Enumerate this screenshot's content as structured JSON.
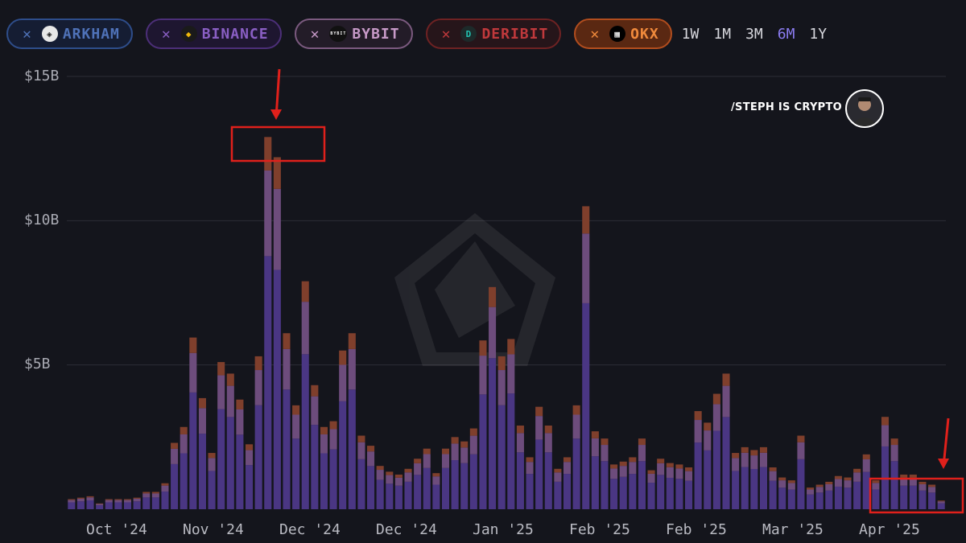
{
  "filters": [
    {
      "key": "arkham",
      "label": "ARKHAM",
      "close": "✕",
      "logo_glyph": "◈",
      "border": "#2e4d8a",
      "text": "#4f72b8",
      "bg": "#151d33",
      "logo_bg": "#e8e8e8",
      "logo_fg": "#222222"
    },
    {
      "key": "binance",
      "label": "BINANCE",
      "close": "✕",
      "logo_glyph": "◆",
      "border": "#4c2f78",
      "text": "#8a5fc4",
      "bg": "#1e1630",
      "logo_bg": "#1a1a1a",
      "logo_fg": "#f0b90b"
    },
    {
      "key": "bybit",
      "label": "BYBIT",
      "close": "✕",
      "logo_glyph": "BYBIT",
      "border": "#7b5a7f",
      "text": "#c79ac8",
      "bg": "#231c28",
      "logo_bg": "#111111",
      "logo_fg": "#ffffff"
    },
    {
      "key": "deribit",
      "label": "DERIBIT",
      "close": "✕",
      "logo_glyph": "D",
      "border": "#6e2223",
      "text": "#c0393c",
      "bg": "#26151a",
      "logo_bg": "#1d2a2a",
      "logo_fg": "#22c1b0"
    },
    {
      "key": "okx",
      "label": "OKX",
      "close": "✕",
      "logo_glyph": "▦",
      "border": "#b14d1e",
      "text": "#f08a3c",
      "bg": "#5a2812",
      "logo_bg": "#000000",
      "logo_fg": "#ffffff"
    }
  ],
  "timeframes": [
    {
      "label": "1W",
      "active": false
    },
    {
      "label": "1M",
      "active": false
    },
    {
      "label": "3M",
      "active": false
    },
    {
      "label": "6M",
      "active": true
    },
    {
      "label": "1Y",
      "active": false
    }
  ],
  "watermark": {
    "text": "/STEPH IS CRYPTO",
    "avatar_icon": "person-avatar"
  },
  "colors": {
    "background": "#14151c",
    "gridline": "#2c2d36",
    "series": [
      "#4a3683",
      "#6d4c7c",
      "#7f3f2c"
    ],
    "annotation": "#e0201b"
  },
  "chart_data": {
    "type": "bar",
    "stacked": true,
    "ylim": [
      0,
      15
    ],
    "y_unit": "$B",
    "yticks": [
      {
        "value": 15,
        "label": "$15B"
      },
      {
        "value": 10,
        "label": "$10B"
      },
      {
        "value": 5,
        "label": "$5B"
      }
    ],
    "xticks": [
      "Oct '24",
      "Nov '24",
      "Dec '24",
      "Dec '24",
      "Jan '25",
      "Feb '25",
      "Feb '25",
      "Mar '25",
      "Apr '25"
    ],
    "totals": [
      0.35,
      0.4,
      0.45,
      0.2,
      0.35,
      0.35,
      0.35,
      0.4,
      0.6,
      0.6,
      0.9,
      2.3,
      2.85,
      5.95,
      3.85,
      1.95,
      5.1,
      4.7,
      3.8,
      2.25,
      5.3,
      12.9,
      12.2,
      6.1,
      3.6,
      7.9,
      4.3,
      2.85,
      3.05,
      5.5,
      6.1,
      2.55,
      2.2,
      1.5,
      1.3,
      1.2,
      1.4,
      1.75,
      2.1,
      1.25,
      2.1,
      2.5,
      2.35,
      2.8,
      5.85,
      7.7,
      5.3,
      5.9,
      2.9,
      1.8,
      3.55,
      2.9,
      1.4,
      1.8,
      3.6,
      10.5,
      2.7,
      2.45,
      1.55,
      1.65,
      1.8,
      2.45,
      1.35,
      1.75,
      1.6,
      1.55,
      1.45,
      3.4,
      3.0,
      4.0,
      4.7,
      1.95,
      2.15,
      2.05,
      2.15,
      1.45,
      1.1,
      1.0,
      2.55,
      0.75,
      0.85,
      0.95,
      1.15,
      1.1,
      1.4,
      1.9,
      1.0,
      3.2,
      2.45,
      1.2,
      1.2,
      0.95,
      0.85,
      0.3
    ],
    "segment_shares": {
      "layers": [
        "base",
        "middle",
        "top"
      ],
      "base": 0.68,
      "middle": 0.23,
      "top": 0.09
    },
    "annotations": [
      {
        "type": "box-with-arrow",
        "label": "peak",
        "x_range": [
          21,
          22
        ],
        "y_range": [
          11.9,
          13.1
        ]
      },
      {
        "type": "box-with-arrow",
        "label": "latest",
        "x_range": [
          87,
          93
        ],
        "y_range": [
          0,
          1.1
        ]
      }
    ]
  }
}
